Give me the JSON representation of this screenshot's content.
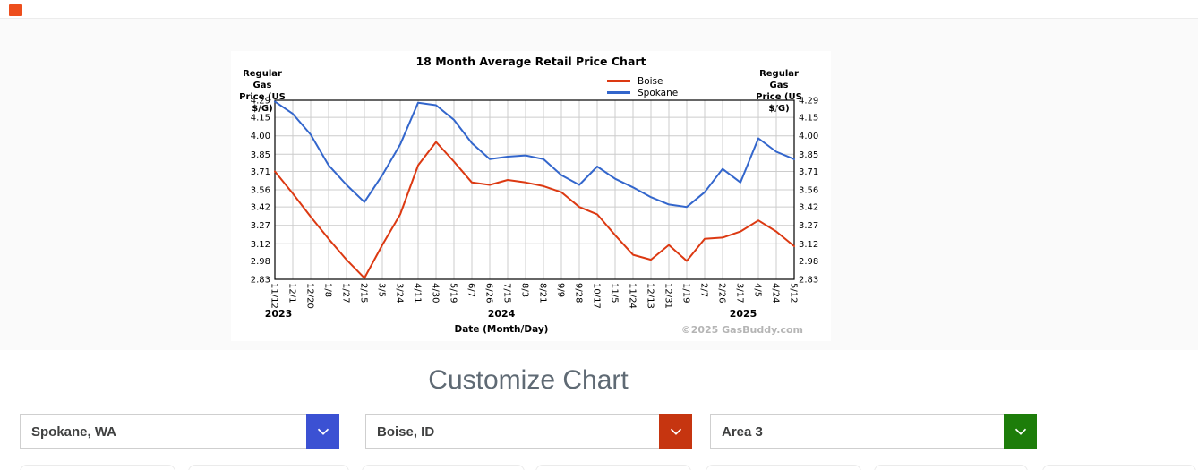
{
  "header": {
    "divider_color": "#ececec",
    "logo_color": "#ed4e1d"
  },
  "chart": {
    "title": "18 Month Average Retail Price Chart",
    "y_axis_label": [
      "Regular Gas",
      "Price (US $/G)"
    ],
    "x_axis_title": "Date (Month/Day)",
    "copyright": "©2025 GasBuddy.com"
  },
  "chart_data": {
    "type": "line",
    "title": "18 Month Average Retail Price Chart",
    "xlabel": "Date (Month/Day)",
    "ylabel": "Regular Gas Price (US $/G)",
    "ylim": [
      2.83,
      4.29
    ],
    "y_ticks": [
      4.29,
      4.15,
      4.0,
      3.85,
      3.71,
      3.56,
      3.42,
      3.27,
      3.12,
      2.98,
      2.83
    ],
    "x": [
      "11/12",
      "12/1",
      "12/20",
      "1/8",
      "1/27",
      "2/15",
      "3/5",
      "3/24",
      "4/11",
      "4/30",
      "5/19",
      "6/7",
      "6/26",
      "7/15",
      "8/3",
      "8/21",
      "9/9",
      "9/28",
      "10/17",
      "11/5",
      "11/24",
      "12/13",
      "12/31",
      "1/19",
      "2/7",
      "2/26",
      "3/17",
      "4/5",
      "4/24",
      "5/12"
    ],
    "x_years": [
      {
        "label": "2023",
        "index": 0.2
      },
      {
        "label": "2024",
        "index": 12.65
      },
      {
        "label": "2025",
        "index": 26.15
      }
    ],
    "grid": true,
    "legend_position": "top-center",
    "gridline_color": "#cccccc",
    "series": [
      {
        "name": "Boise",
        "color": "#dc3912",
        "values": [
          3.71,
          3.53,
          3.34,
          3.16,
          2.99,
          2.84,
          3.11,
          3.36,
          3.76,
          3.95,
          3.79,
          3.62,
          3.6,
          3.64,
          3.62,
          3.59,
          3.54,
          3.42,
          3.36,
          3.19,
          3.03,
          2.99,
          3.11,
          2.98,
          3.16,
          3.17,
          3.22,
          3.31,
          3.22,
          3.1
        ]
      },
      {
        "name": "Spokane",
        "color": "#3366cc",
        "values": [
          4.28,
          4.18,
          4.01,
          3.76,
          3.6,
          3.46,
          3.68,
          3.93,
          4.27,
          4.25,
          4.13,
          3.94,
          3.81,
          3.83,
          3.84,
          3.81,
          3.68,
          3.6,
          3.75,
          3.65,
          3.58,
          3.5,
          3.44,
          3.42,
          3.54,
          3.73,
          3.62,
          3.98,
          3.87,
          3.81
        ]
      }
    ]
  },
  "customize": {
    "heading": "Customize Chart",
    "selects": [
      {
        "value": "Spokane, WA",
        "accent": "#3b51d3"
      },
      {
        "value": "Boise, ID",
        "accent": "#c63510"
      },
      {
        "value": "Area 3",
        "accent": "#1d7d0a"
      }
    ]
  }
}
